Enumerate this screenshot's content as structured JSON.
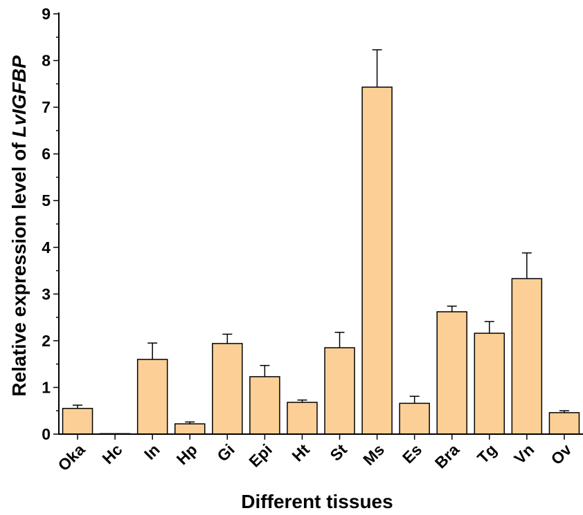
{
  "chart_data": {
    "type": "bar",
    "title": "",
    "xlabel": "Different tissues",
    "ylabel_prefix": "Relative expression level of ",
    "ylabel_gene": "LvIGFBP",
    "ylim": [
      0,
      9
    ],
    "y_ticks": [
      "0",
      "1",
      "2",
      "3",
      "4",
      "5",
      "6",
      "7",
      "8",
      "9"
    ],
    "categories": [
      "Oka",
      "Hc",
      "In",
      "Hp",
      "Gi",
      "Epi",
      "Ht",
      "St",
      "Ms",
      "Es",
      "Bra",
      "Tg",
      "Vn",
      "Ov"
    ],
    "values": [
      0.55,
      0.01,
      1.6,
      0.22,
      1.94,
      1.23,
      0.68,
      1.85,
      7.43,
      0.66,
      2.62,
      2.16,
      3.33,
      0.46
    ],
    "errors": [
      0.07,
      0.0,
      0.35,
      0.04,
      0.2,
      0.24,
      0.05,
      0.33,
      0.8,
      0.15,
      0.12,
      0.25,
      0.55,
      0.04
    ],
    "bar_color": "#fccf96",
    "grid": false,
    "legend": "none"
  }
}
